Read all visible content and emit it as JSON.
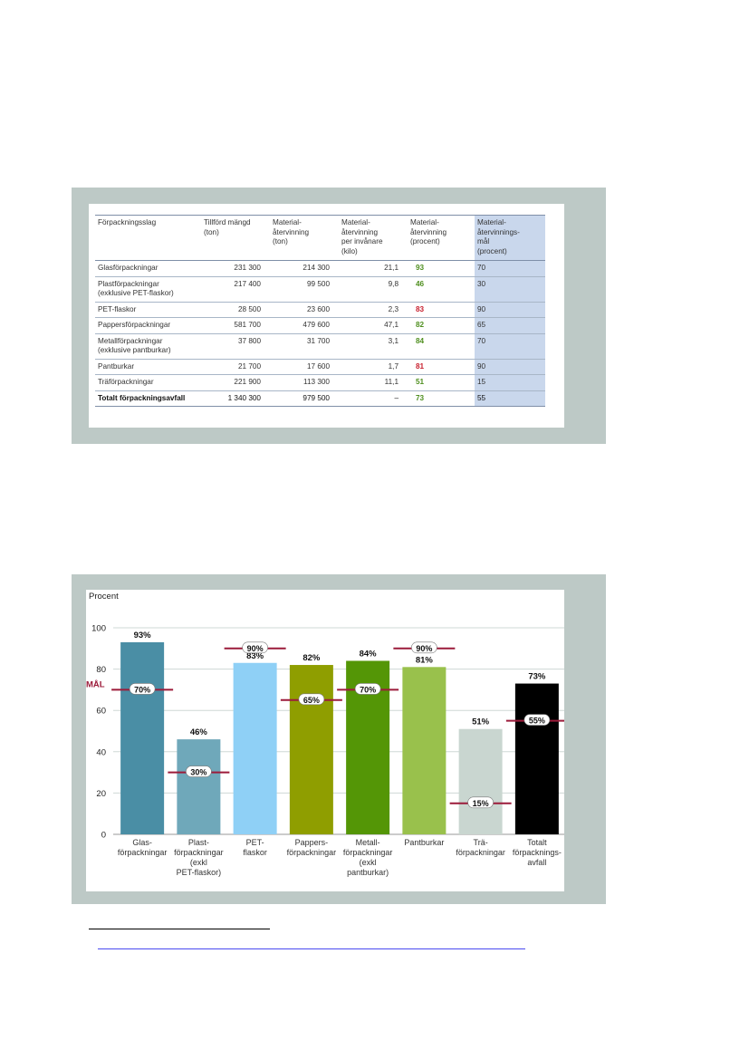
{
  "table": {
    "headers": [
      "Förpackningsslag",
      "Tillförd mängd\n(ton)",
      "Material-\nåtervinning\n(ton)",
      "Material-\nåtervinning\nper invånare\n(kilo)",
      "Material-\nåtervinning\n(procent)",
      "Material-\nåtervinnings-\nmål\n(procent)"
    ],
    "rows": [
      {
        "name": "Glasförpackningar",
        "sub": "",
        "supplied": "231 300",
        "recycled": "214 300",
        "per_capita": "21,1",
        "percent": "93",
        "status": "green",
        "goal": "70"
      },
      {
        "name": "Plastförpackningar",
        "sub": "(exklusive PET-flaskor)",
        "supplied": "217 400",
        "recycled": "99 500",
        "per_capita": "9,8",
        "percent": "46",
        "status": "green",
        "goal": "30"
      },
      {
        "name": "PET-flaskor",
        "sub": "",
        "supplied": "28 500",
        "recycled": "23 600",
        "per_capita": "2,3",
        "percent": "83",
        "status": "red",
        "goal": "90"
      },
      {
        "name": "Pappersförpackningar",
        "sub": "",
        "supplied": "581 700",
        "recycled": "479 600",
        "per_capita": "47,1",
        "percent": "82",
        "status": "green",
        "goal": "65"
      },
      {
        "name": "Metallförpackningar",
        "sub": "(exklusive pantburkar)",
        "supplied": "37 800",
        "recycled": "31 700",
        "per_capita": "3,1",
        "percent": "84",
        "status": "green",
        "goal": "70"
      },
      {
        "name": "Pantburkar",
        "sub": "",
        "supplied": "21 700",
        "recycled": "17 600",
        "per_capita": "1,7",
        "percent": "81",
        "status": "red",
        "goal": "90"
      },
      {
        "name": "Träförpackningar",
        "sub": "",
        "supplied": "221 900",
        "recycled": "113 300",
        "per_capita": "11,1",
        "percent": "51",
        "status": "green",
        "goal": "15"
      }
    ],
    "total": {
      "name": "Totalt förpackningsavfall",
      "supplied": "1 340 300",
      "recycled": "979 500",
      "per_capita": "–",
      "percent": "73",
      "status": "green",
      "goal": "55"
    },
    "colors": {
      "green": "#4f8f1f",
      "red": "#c8202e",
      "goal_column": "#c9d7ec"
    }
  },
  "chart_data": {
    "type": "bar",
    "ylabel": "Procent",
    "ylim": [
      0,
      100
    ],
    "yticks": [
      0,
      20,
      40,
      60,
      80,
      100
    ],
    "goal_label": "MÅL",
    "categories": [
      "Glas-\nförpackningar",
      "Plast-\nförpackningar\n(exkl\nPET-flaskor)",
      "PET-\nflaskor",
      "Pappers-\nförpackningar",
      "Metall-\nförpackningar\n(exkl\npantburkar)",
      "Pantburkar",
      "Trä-\nförpackningar",
      "Totalt\nförpacknings-\navfall"
    ],
    "values": [
      93,
      46,
      83,
      82,
      84,
      81,
      51,
      73
    ],
    "value_labels": [
      "93%",
      "46%",
      "83%",
      "82%",
      "84%",
      "81%",
      "51%",
      "73%"
    ],
    "goals": [
      70,
      30,
      90,
      65,
      70,
      90,
      15,
      55
    ],
    "goal_labels": [
      "70%",
      "30%",
      "90%",
      "65%",
      "70%",
      "90%",
      "15%",
      "55%"
    ],
    "colors": [
      "#4a8ea5",
      "#6fa8ba",
      "#8fd0f6",
      "#8f9e00",
      "#549606",
      "#99c14c",
      "#c9d6d0",
      "#000000"
    ],
    "goal_line_color": "#9c1b3a",
    "grid": true,
    "grid_color": "#cfd8d6"
  }
}
